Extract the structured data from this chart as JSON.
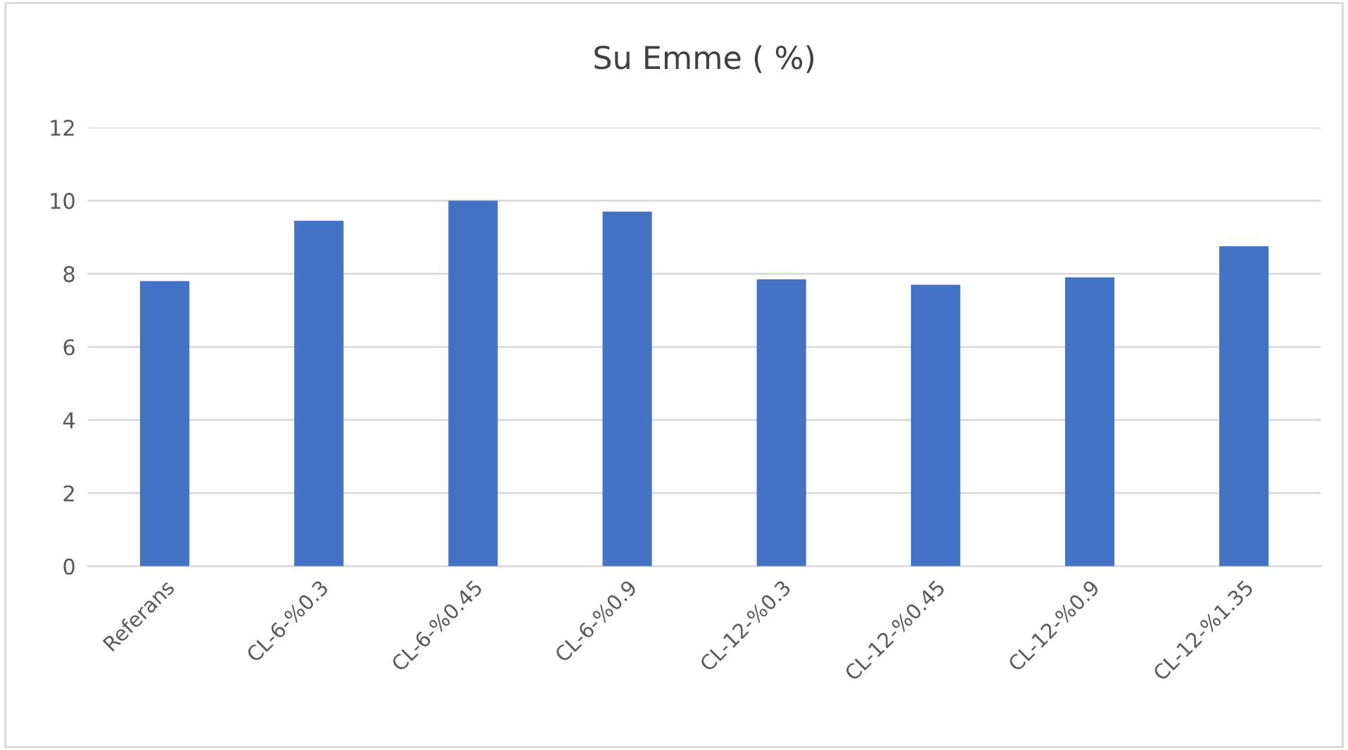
{
  "chart_data": {
    "type": "bar",
    "title": "Su Emme ( %)",
    "categories": [
      "Referans",
      "CL-6-%0.3",
      "CL-6-%0.45",
      "CL-6-%0.9",
      "CL-12-%0.3",
      "CL-12-%0.45",
      "CL-12-%0.9",
      "CL-12-%1.35"
    ],
    "values": [
      7.8,
      9.45,
      10.0,
      9.7,
      7.85,
      7.7,
      7.9,
      8.75
    ],
    "color": "#4472c4",
    "ylim": [
      0,
      12
    ],
    "yticks": [
      0,
      2,
      4,
      6,
      8,
      10,
      12
    ],
    "grid": "y",
    "legend": false
  }
}
